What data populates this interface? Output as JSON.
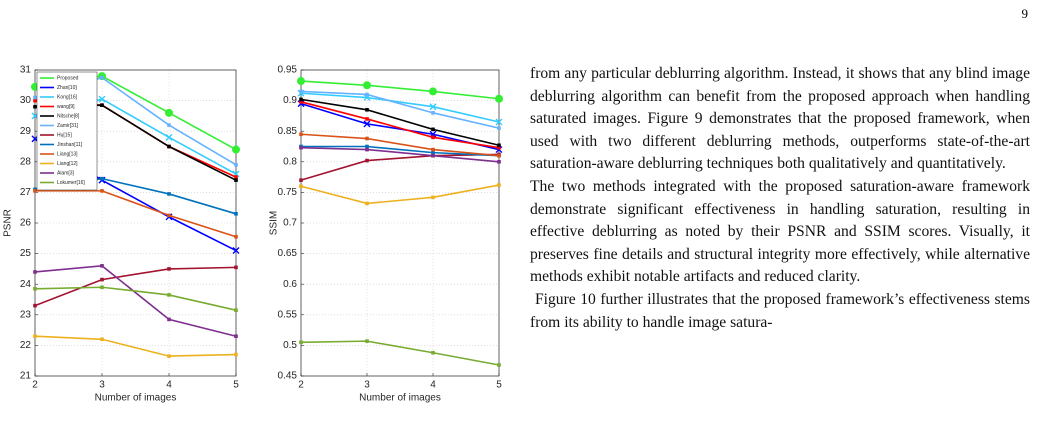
{
  "page_number": "9",
  "chart_data": [
    {
      "type": "line",
      "ylabel": "PSNR",
      "xlabel": "Number of images",
      "x": [
        2,
        3,
        4,
        5
      ],
      "xlim": [
        2,
        5
      ],
      "xticks": [
        2,
        3,
        4,
        5
      ],
      "ylim": [
        21,
        31
      ],
      "yticks": [
        21,
        22,
        23,
        24,
        25,
        26,
        27,
        28,
        29,
        30,
        31
      ],
      "grid": true,
      "legend": "upper left",
      "series": [
        {
          "name": "Proposed",
          "color": "#33ee33",
          "marker": "o",
          "values": [
            30.45,
            30.8,
            29.6,
            28.4
          ]
        },
        {
          "name": "Zhan[10]",
          "color": "#0000ff",
          "marker": "x",
          "values": [
            28.75,
            27.4,
            26.2,
            25.1
          ]
        },
        {
          "name": "Kong[16]",
          "color": "#33ccff",
          "marker": "x",
          "values": [
            29.5,
            30.05,
            28.8,
            27.6
          ]
        },
        {
          "name": "wang[9]",
          "color": "#ff0000",
          "marker": "s",
          "values": [
            30.0,
            29.85,
            28.5,
            27.5
          ]
        },
        {
          "name": "Nitsche[8]",
          "color": "#000000",
          "marker": "s",
          "values": [
            29.8,
            29.85,
            28.5,
            27.4
          ]
        },
        {
          "name": "Zamir[31]",
          "color": "#66b2ff",
          "marker": "s",
          "values": [
            30.1,
            30.75,
            29.2,
            27.9
          ]
        },
        {
          "name": "Hu[15]",
          "color": "#a2142f",
          "marker": "s",
          "values": [
            23.3,
            24.15,
            24.5,
            24.55
          ]
        },
        {
          "name": "Jinshan[11]",
          "color": "#0072bd",
          "marker": "s",
          "values": [
            27.1,
            27.45,
            26.95,
            26.3
          ]
        },
        {
          "name": "Liang[13]",
          "color": "#d95319",
          "marker": "s",
          "values": [
            27.05,
            27.05,
            26.25,
            25.55
          ]
        },
        {
          "name": "Liang[12]",
          "color": "#edb120",
          "marker": "s",
          "values": [
            22.3,
            22.2,
            21.65,
            21.7
          ]
        },
        {
          "name": "Alam[3]",
          "color": "#7e2f8e",
          "marker": "s",
          "values": [
            24.4,
            24.6,
            22.85,
            22.3
          ]
        },
        {
          "name": "Lokumer[16]",
          "color": "#77ac30",
          "marker": "s",
          "values": [
            23.85,
            23.9,
            23.65,
            23.15
          ]
        }
      ]
    },
    {
      "type": "line",
      "ylabel": "SSIM",
      "xlabel": "Number of images",
      "x": [
        2,
        3,
        4,
        5
      ],
      "xlim": [
        2,
        5
      ],
      "xticks": [
        2,
        3,
        4,
        5
      ],
      "ylim": [
        0.45,
        0.95
      ],
      "yticks": [
        0.45,
        0.5,
        0.55,
        0.6,
        0.65,
        0.7,
        0.75,
        0.8,
        0.85,
        0.9,
        0.95
      ],
      "grid": true,
      "series": [
        {
          "color": "#33ee33",
          "marker": "o",
          "values": [
            0.932,
            0.925,
            0.915,
            0.903
          ]
        },
        {
          "color": "#0000ff",
          "marker": "x",
          "values": [
            0.895,
            0.862,
            0.845,
            0.82
          ]
        },
        {
          "color": "#33ccff",
          "marker": "x",
          "values": [
            0.912,
            0.905,
            0.89,
            0.865
          ]
        },
        {
          "color": "#ff0000",
          "marker": "s",
          "values": [
            0.898,
            0.87,
            0.84,
            0.823
          ]
        },
        {
          "color": "#000000",
          "marker": "s",
          "values": [
            0.902,
            0.885,
            0.853,
            0.827
          ]
        },
        {
          "color": "#66b2ff",
          "marker": "s",
          "values": [
            0.915,
            0.91,
            0.88,
            0.855
          ]
        },
        {
          "color": "#a2142f",
          "marker": "s",
          "values": [
            0.77,
            0.802,
            0.81,
            0.812
          ]
        },
        {
          "color": "#0072bd",
          "marker": "s",
          "values": [
            0.825,
            0.825,
            0.815,
            0.81
          ]
        },
        {
          "color": "#d95319",
          "marker": "s",
          "values": [
            0.845,
            0.838,
            0.82,
            0.81
          ]
        },
        {
          "color": "#edb120",
          "marker": "s",
          "values": [
            0.76,
            0.732,
            0.742,
            0.762
          ]
        },
        {
          "color": "#7e2f8e",
          "marker": "s",
          "values": [
            0.823,
            0.82,
            0.81,
            0.8
          ]
        },
        {
          "color": "#77ac30",
          "marker": "s",
          "values": [
            0.505,
            0.507,
            0.488,
            0.468
          ]
        }
      ]
    }
  ],
  "paragraphs": [
    "from any particular deblurring algorithm. Instead, it shows that any blind image deblurring algorithm can benefit from the proposed approach when handling saturated images. Figure 9 demonstrates that the proposed framework, when used with two different deblurring methods, outperforms state-of-the-art saturation-aware deblurring techniques both qualitatively and quantitatively.",
    "The two methods integrated with the proposed saturation-aware framework demonstrate significant effectiveness in handling saturation, resulting in effective deblurring as noted by their PSNR and SSIM scores. Visually, it preserves fine details and structural integrity more effectively, while alternative methods exhibit notable artifacts and reduced clarity.",
    "Figure 10 further illustrates that the proposed framework’s effectiveness stems from its ability to handle image satura-"
  ]
}
